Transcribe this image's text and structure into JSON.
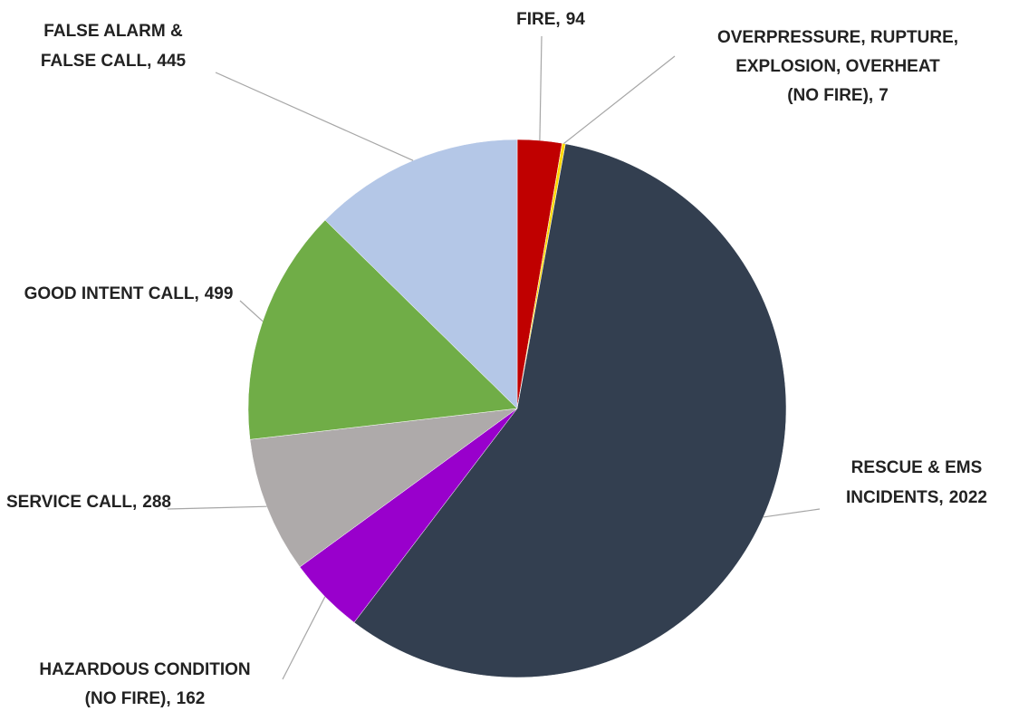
{
  "chart_data": {
    "type": "pie",
    "categories": [
      [
        "FIRE,"
      ],
      [
        "OVERPRESSURE,  RUPTURE,",
        "EXPLOSION, OVERHEAT",
        "(NO FIRE),"
      ],
      [
        "RESCUE  & EMS",
        "INCIDENTS,"
      ],
      [
        "HAZARDOUS  CONDITION",
        "(NO FIRE),"
      ],
      [
        "SERVICE CALL,"
      ],
      [
        "GOOD INTENT CALL,"
      ],
      [
        "FALSE ALARM &",
        "FALSE CALL,"
      ]
    ],
    "values": [
      94,
      7,
      2022,
      162,
      288,
      499,
      445
    ],
    "colors": [
      "#c00000",
      "#ffd700",
      "#333f50",
      "#9900cc",
      "#aeaaaa",
      "#70ad47",
      "#b4c7e7"
    ]
  }
}
